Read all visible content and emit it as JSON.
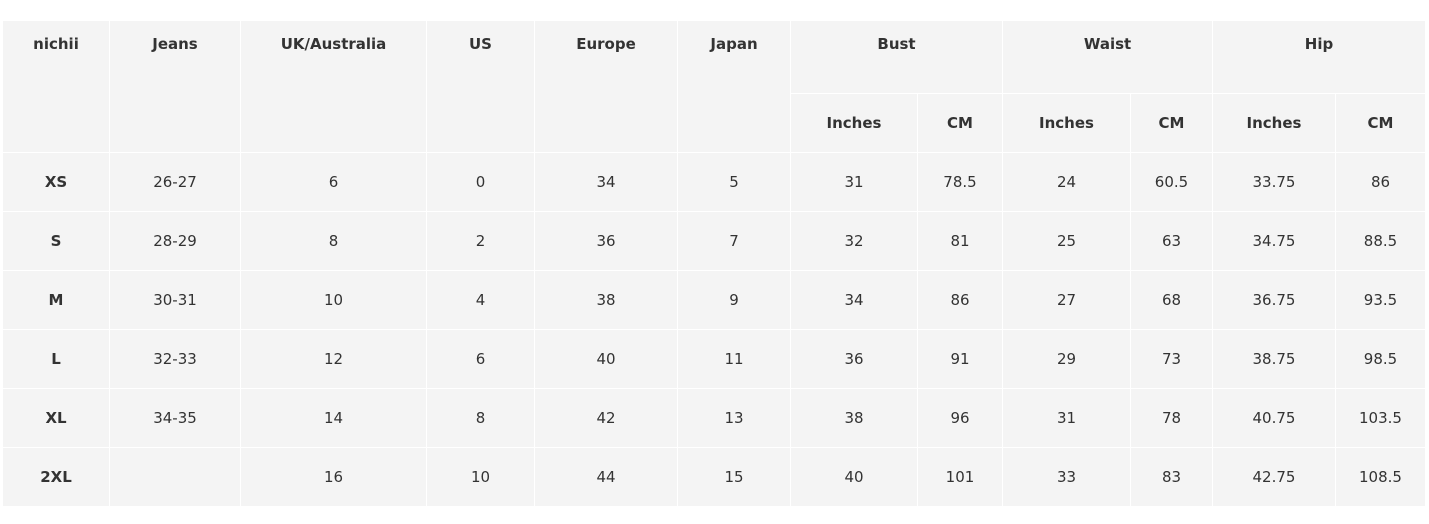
{
  "headers": {
    "brand": "nichii",
    "jeans": "Jeans",
    "uk": "UK/Australia",
    "us": "US",
    "europe": "Europe",
    "japan": "Japan",
    "bust": "Bust",
    "waist": "Waist",
    "hip": "Hip",
    "inches": "Inches",
    "cm": "CM"
  },
  "rows": [
    [
      "XS",
      "26-27",
      "6",
      "0",
      "34",
      "5",
      "31",
      "78.5",
      "24",
      "60.5",
      "33.75",
      "86"
    ],
    [
      "S",
      "28-29",
      "8",
      "2",
      "36",
      "7",
      "32",
      "81",
      "25",
      "63",
      "34.75",
      "88.5"
    ],
    [
      "M",
      "30-31",
      "10",
      "4",
      "38",
      "9",
      "34",
      "86",
      "27",
      "68",
      "36.75",
      "93.5"
    ],
    [
      "L",
      "32-33",
      "12",
      "6",
      "40",
      "11",
      "36",
      "91",
      "29",
      "73",
      "38.75",
      "98.5"
    ],
    [
      "XL",
      "34-35",
      "14",
      "8",
      "42",
      "13",
      "38",
      "96",
      "31",
      "78",
      "40.75",
      "103.5"
    ],
    [
      "2XL",
      "",
      "16",
      "10",
      "44",
      "15",
      "40",
      "101",
      "33",
      "83",
      "42.75",
      "108.5"
    ]
  ]
}
